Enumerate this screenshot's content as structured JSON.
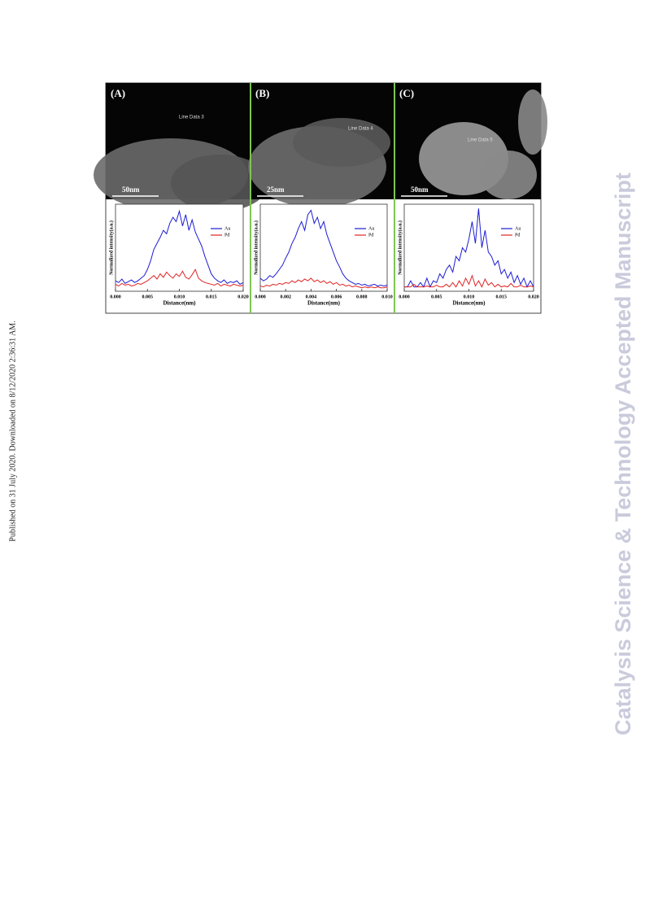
{
  "side_note": "Published on 31 July 2020. Downloaded on 8/12/2020 2:36:31 AM.",
  "watermark": "Catalysis Science & Technology Accepted Manuscript",
  "figure": {
    "panels": [
      {
        "label": "(A)",
        "line_label": "Line Data 3",
        "scale_bar": "50nm"
      },
      {
        "label": "(B)",
        "line_label": "Line Data 4",
        "scale_bar": "25nm"
      },
      {
        "label": "(C)",
        "line_label": "Line Data 5",
        "scale_bar": "50nm"
      }
    ]
  },
  "chart_data": [
    {
      "type": "line",
      "x_label": "Distance(nm)",
      "y_label": "Normalized intensity(a.u.)",
      "legend": "upper right",
      "xlim": [
        0,
        0.02
      ],
      "xticks": [
        {
          "value": 0,
          "label": "0.000"
        },
        0.005,
        {
          "value": 0.01,
          "label": "0.010"
        },
        0.015,
        {
          "value": 0.02,
          "label": "0.020"
        }
      ],
      "ylim": [
        0,
        1
      ],
      "x": [
        0,
        0.0005,
        0.001,
        0.0015,
        0.002,
        0.0025,
        0.003,
        0.0035,
        0.004,
        0.0045,
        0.005,
        0.0055,
        0.006,
        0.0065,
        0.007,
        0.0075,
        0.008,
        0.0085,
        0.009,
        0.0095,
        0.01,
        0.0105,
        0.011,
        0.0115,
        0.012,
        0.0125,
        0.013,
        0.0135,
        0.014,
        0.0145,
        0.015,
        0.0155,
        0.016,
        0.0165,
        0.017,
        0.0175,
        0.018,
        0.0185,
        0.019,
        0.0195,
        0.02
      ],
      "series": [
        {
          "name": "Au",
          "color": "#1c1cd4",
          "values": [
            0.12,
            0.1,
            0.14,
            0.09,
            0.11,
            0.13,
            0.1,
            0.12,
            0.15,
            0.18,
            0.25,
            0.35,
            0.48,
            0.55,
            0.62,
            0.7,
            0.66,
            0.78,
            0.85,
            0.8,
            0.92,
            0.75,
            0.88,
            0.7,
            0.82,
            0.68,
            0.6,
            0.52,
            0.4,
            0.3,
            0.2,
            0.15,
            0.12,
            0.1,
            0.13,
            0.09,
            0.11,
            0.1,
            0.12,
            0.08,
            0.1
          ]
        },
        {
          "name": "Pd",
          "color": "#e02424",
          "values": [
            0.08,
            0.06,
            0.09,
            0.07,
            0.08,
            0.06,
            0.07,
            0.09,
            0.08,
            0.1,
            0.12,
            0.15,
            0.18,
            0.14,
            0.2,
            0.16,
            0.22,
            0.18,
            0.15,
            0.2,
            0.17,
            0.23,
            0.16,
            0.14,
            0.19,
            0.25,
            0.15,
            0.12,
            0.1,
            0.09,
            0.08,
            0.07,
            0.09,
            0.06,
            0.08,
            0.07,
            0.06,
            0.08,
            0.07,
            0.06,
            0.07
          ]
        }
      ]
    },
    {
      "type": "line",
      "x_label": "Distance(nm)",
      "y_label": "Normalized intensity(a.u.)",
      "legend": "upper right",
      "xlim": [
        0,
        0.01
      ],
      "xticks": [
        {
          "value": 0,
          "label": "0.000"
        },
        0.002,
        0.004,
        0.006,
        0.008,
        {
          "value": 0.01,
          "label": "0.010"
        }
      ],
      "ylim": [
        0,
        1
      ],
      "x": [
        0,
        0.00025,
        0.0005,
        0.00075,
        0.001,
        0.00125,
        0.0015,
        0.00175,
        0.002,
        0.00225,
        0.0025,
        0.00275,
        0.003,
        0.00325,
        0.0035,
        0.00375,
        0.004,
        0.00425,
        0.0045,
        0.00475,
        0.005,
        0.00525,
        0.0055,
        0.00575,
        0.006,
        0.00625,
        0.0065,
        0.00675,
        0.007,
        0.00725,
        0.0075,
        0.00775,
        0.008,
        0.00825,
        0.0085,
        0.00875,
        0.009,
        0.00925,
        0.0095,
        0.00975,
        0.01
      ],
      "series": [
        {
          "name": "Au",
          "color": "#1c1cd4",
          "values": [
            0.15,
            0.12,
            0.14,
            0.18,
            0.16,
            0.2,
            0.25,
            0.3,
            0.38,
            0.45,
            0.55,
            0.62,
            0.72,
            0.8,
            0.7,
            0.88,
            0.93,
            0.78,
            0.85,
            0.72,
            0.8,
            0.65,
            0.55,
            0.45,
            0.35,
            0.28,
            0.2,
            0.15,
            0.12,
            0.1,
            0.08,
            0.09,
            0.07,
            0.08,
            0.06,
            0.07,
            0.08,
            0.06,
            0.07,
            0.06,
            0.07
          ]
        },
        {
          "name": "Pd",
          "color": "#e02424",
          "values": [
            0.06,
            0.05,
            0.07,
            0.06,
            0.08,
            0.07,
            0.09,
            0.08,
            0.1,
            0.09,
            0.12,
            0.1,
            0.13,
            0.11,
            0.14,
            0.12,
            0.15,
            0.11,
            0.13,
            0.1,
            0.12,
            0.09,
            0.11,
            0.08,
            0.1,
            0.07,
            0.08,
            0.06,
            0.07,
            0.05,
            0.06,
            0.05,
            0.04,
            0.05,
            0.04,
            0.05,
            0.04,
            0.05,
            0.04,
            0.04,
            0.05
          ]
        }
      ]
    },
    {
      "type": "line",
      "x_label": "Distance(nm)",
      "y_label": "Normalized intensity(a.u.)",
      "legend": "upper right",
      "xlim": [
        0,
        0.02
      ],
      "xticks": [
        {
          "value": 0,
          "label": "0.000"
        },
        0.005,
        {
          "value": 0.01,
          "label": "0.010"
        },
        0.015,
        {
          "value": 0.02,
          "label": "0.020"
        }
      ],
      "ylim": [
        0,
        1
      ],
      "x": [
        0,
        0.0005,
        0.001,
        0.0015,
        0.002,
        0.0025,
        0.003,
        0.0035,
        0.004,
        0.0045,
        0.005,
        0.0055,
        0.006,
        0.0065,
        0.007,
        0.0075,
        0.008,
        0.0085,
        0.009,
        0.0095,
        0.01,
        0.0105,
        0.011,
        0.0115,
        0.012,
        0.0125,
        0.013,
        0.0135,
        0.014,
        0.0145,
        0.015,
        0.0155,
        0.016,
        0.0165,
        0.017,
        0.0175,
        0.018,
        0.0185,
        0.019,
        0.0195,
        0.02
      ],
      "series": [
        {
          "name": "Au",
          "color": "#1c1cd4",
          "values": [
            0.05,
            0.05,
            0.12,
            0.05,
            0.05,
            0.1,
            0.05,
            0.15,
            0.05,
            0.12,
            0.1,
            0.2,
            0.15,
            0.25,
            0.3,
            0.22,
            0.4,
            0.35,
            0.5,
            0.45,
            0.6,
            0.8,
            0.55,
            0.95,
            0.5,
            0.7,
            0.45,
            0.4,
            0.3,
            0.35,
            0.2,
            0.25,
            0.15,
            0.22,
            0.1,
            0.18,
            0.08,
            0.15,
            0.05,
            0.12,
            0.05
          ]
        },
        {
          "name": "Pd",
          "color": "#e02424",
          "values": [
            0.05,
            0.05,
            0.05,
            0.08,
            0.05,
            0.05,
            0.05,
            0.06,
            0.05,
            0.05,
            0.07,
            0.05,
            0.05,
            0.08,
            0.05,
            0.1,
            0.05,
            0.12,
            0.06,
            0.15,
            0.08,
            0.18,
            0.06,
            0.12,
            0.05,
            0.14,
            0.07,
            0.1,
            0.05,
            0.08,
            0.05,
            0.06,
            0.05,
            0.09,
            0.05,
            0.05,
            0.07,
            0.05,
            0.05,
            0.06,
            0.05
          ]
        }
      ]
    }
  ]
}
